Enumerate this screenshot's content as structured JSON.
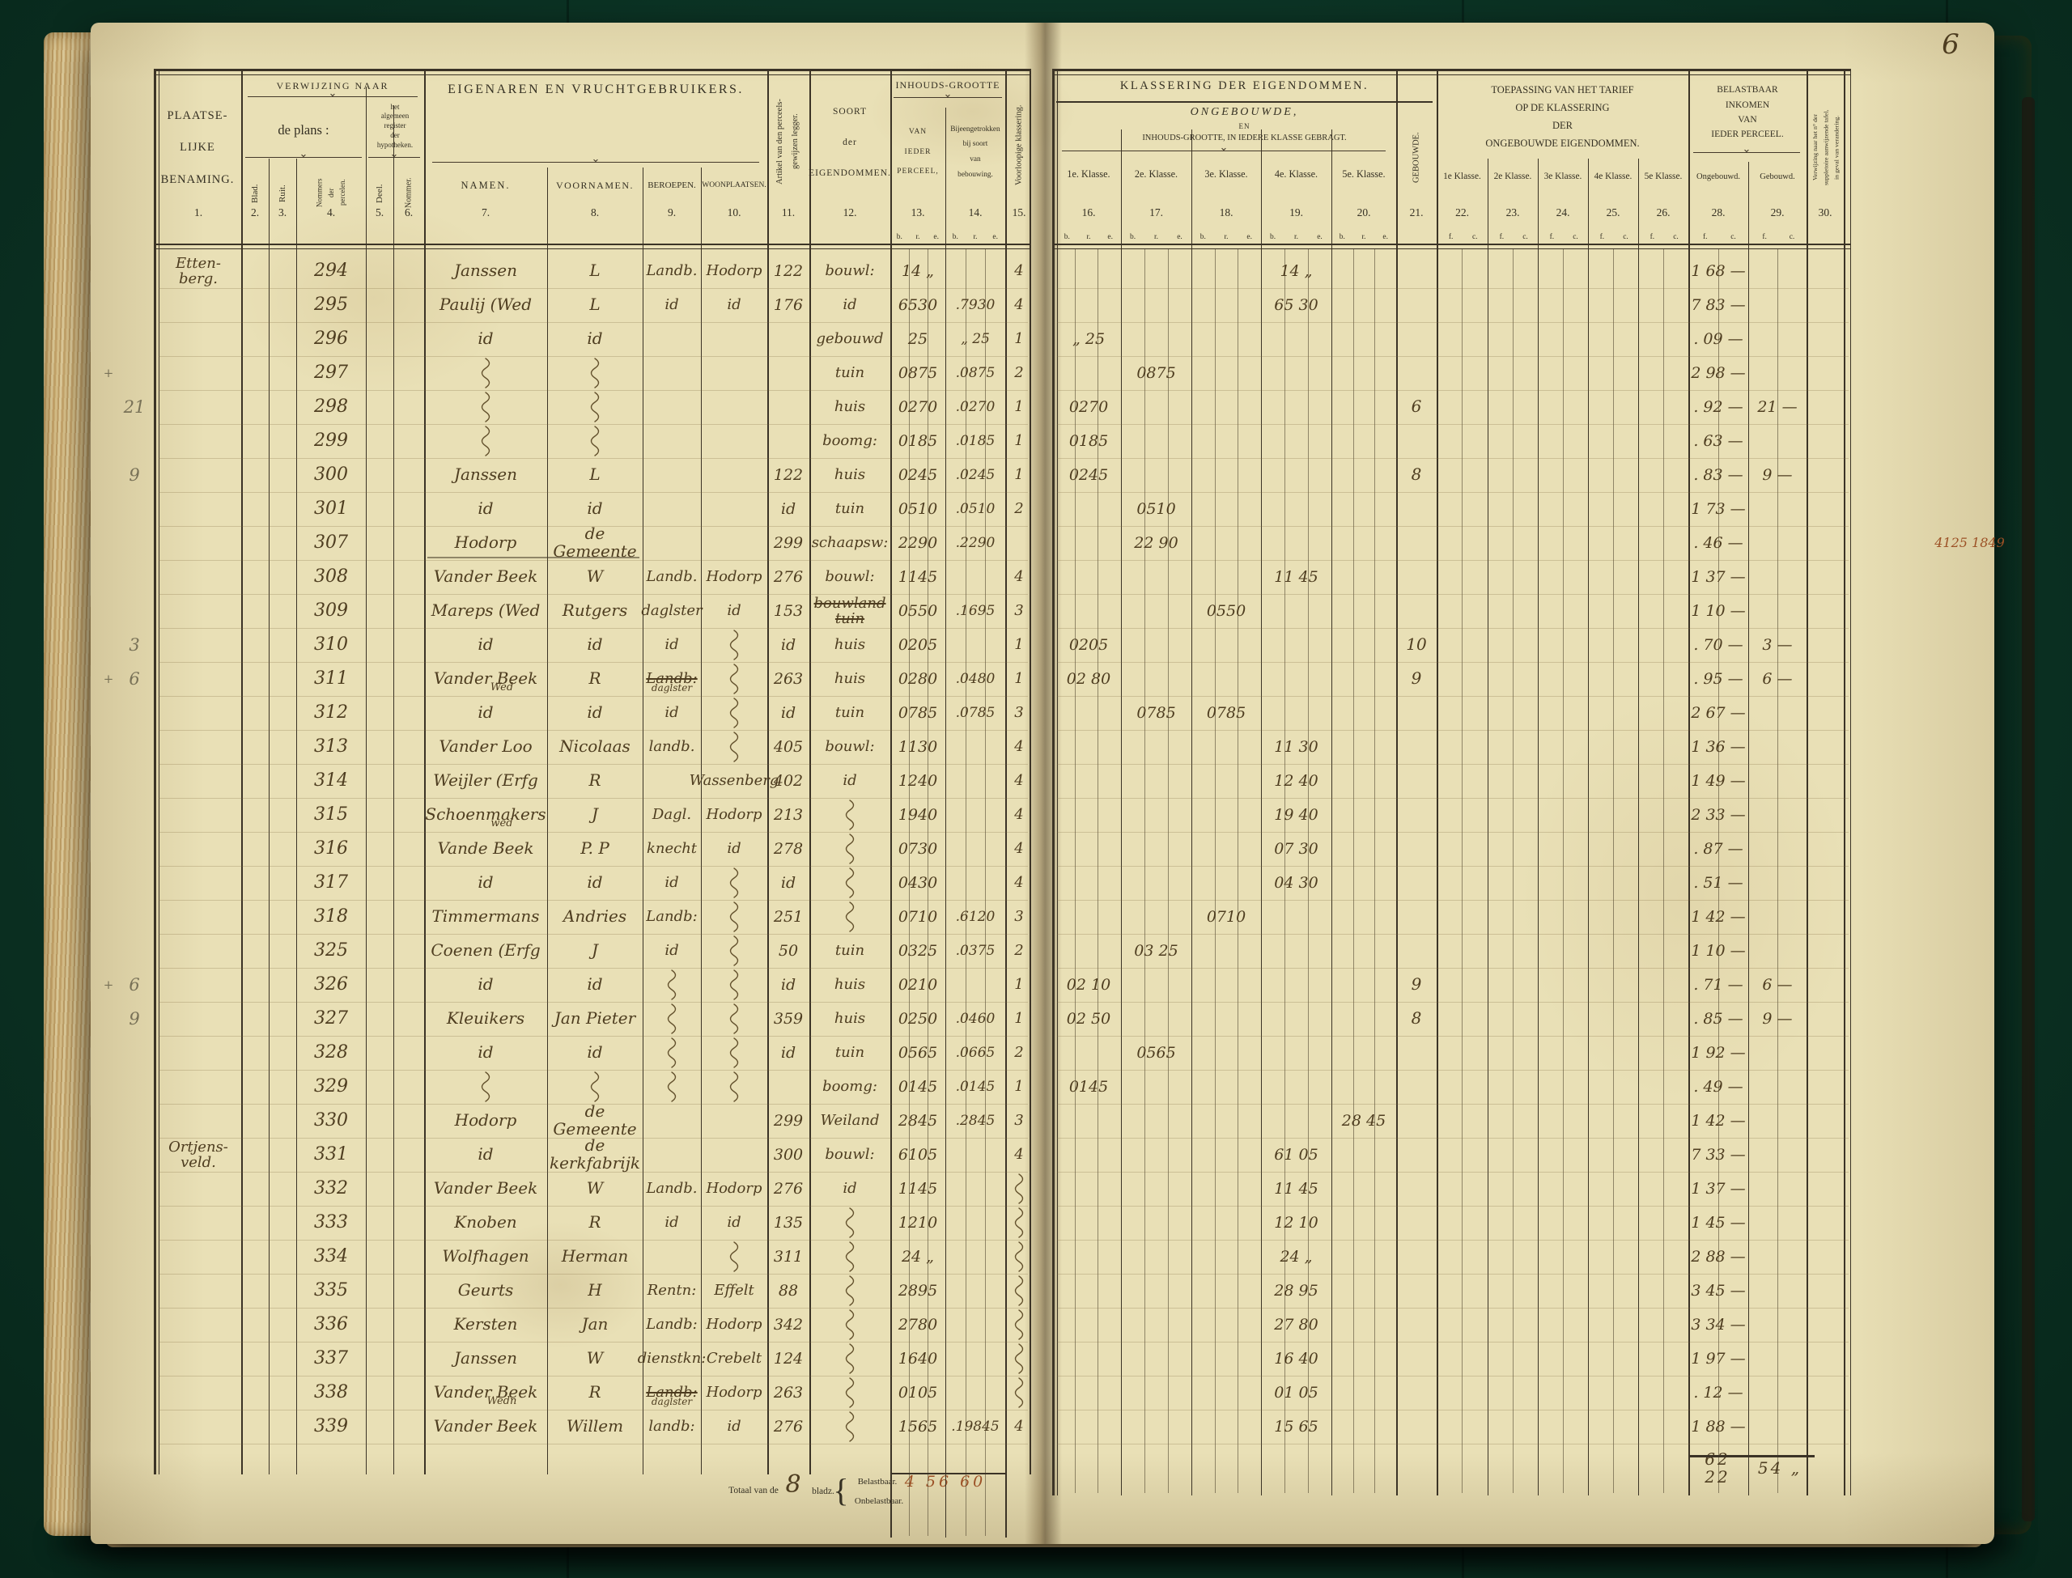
{
  "folio_number": "6",
  "colors": {
    "felt_green": "#0c3425",
    "paper_cream": "#e9e0b6",
    "print_ink": "#353023",
    "handwriting_ink": "#4e3d20",
    "red_ink": "#9c5126",
    "pencil": "#787157"
  },
  "ledger": {
    "left_header": {
      "plaatselijke_benaming": "PLAATSE-\nLIJKE\nBENAMING.",
      "verwijzing_naar": "VERWIJZING NAAR",
      "de_plans": "de plans :",
      "register_hypotheken": "het\nalgemeen\nregister\nder\nhypotheken.",
      "blad": "Blad.",
      "ruit": "Ruit.",
      "nommers_percelen": "Nommers\nder\npercelen.",
      "deel": "Deel.",
      "nommer": "Nommer.",
      "eigenaren": "EIGENAREN  EN  VRUCHTGEBRUIKERS.",
      "namen": "NAMEN.",
      "voornamen": "VOORNAMEN.",
      "beroepen": "BEROEPEN.",
      "woonplaatsen": "WOONPLAATSEN.",
      "artikel_legger": "Artikel van den perceels-\ngewijzen legger.",
      "soort": "SOORT\nder\nEIGENDOMMEN.",
      "inhouds_grootte": "INHOUDS-GROOTTE",
      "van_ieder_perceel": "VAN\nIEDER\nPERCEEL,",
      "bijeengetrokken": "Bijeengetrokken\nbij soort\nvan\nbebouwing.",
      "voorloopige_klassering": "Voorloopige klassering."
    },
    "right_header": {
      "klassering": "KLASSERING  DER  EIGENDOMMEN.",
      "ongebouwde": "ONGEBOUWDE,",
      "en": "EN",
      "in_iedere_klasse": "INHOUDS-GROOTTE,  IN  IEDERE  KLASSE  GEBRAGT.",
      "klassen_ongebouwd": [
        "1e. Klasse.",
        "2e. Klasse.",
        "3e. Klasse.",
        "4e. Klasse.",
        "5e. Klasse."
      ],
      "gebouwde": "GEBOUWDE.",
      "toepassing": "TOEPASSING VAN HET TARIEF\nOP DE KLASSERING\nDER\nONGEBOUWDE EIGENDOMMEN.",
      "klassen_tarief": [
        "1e Klasse.",
        "2e Klasse.",
        "3e Klasse.",
        "4e Klasse.",
        "5e Klasse."
      ],
      "belastbaar_inkomen": "BELASTBAAR\nINKOMEN\nVAN\nIEDER PERCEEL.",
      "ongebouwd": "Ongebouwd.",
      "gebouwd": "Gebouwd.",
      "verwijzing_suppletoire": "Verwijzing naar het n° der\nsuppletoire aanwijzende tafel,\nin geval van verandering."
    },
    "column_numbers": {
      "place": "1.",
      "blad": "2.",
      "ruit": "3.",
      "perc": "4.",
      "deel": "5.",
      "nom": "6.",
      "nm": "7.",
      "vn": "8.",
      "br": "9.",
      "wp": "10.",
      "art": "11.",
      "srt": "12.",
      "inh": "13.",
      "bij": "14.",
      "vk": "15.",
      "k1": "16.",
      "k2": "17.",
      "k3": "18.",
      "k4": "19.",
      "k5": "20.",
      "gb": "21.",
      "t1": "22.",
      "t2": "23.",
      "t3": "24.",
      "t4": "25.",
      "t5": "26.",
      "oi": "28.",
      "gi": "29.",
      "vw": "30."
    },
    "units": {
      "area": [
        "b.",
        "r.",
        "e."
      ],
      "money": [
        "f.",
        "c."
      ]
    },
    "rows": [
      {
        "no": "294",
        "place": "Etten-\nberg.",
        "nm": "Janssen",
        "vn": "L",
        "br": "Landb.",
        "wp": "Hodorp",
        "art": "122",
        "srt": "bouwl:",
        "inh": "14 „",
        "vk": "4",
        "k4": "14 „",
        "oi": "1 68 —"
      },
      {
        "no": "295",
        "nm": "Paulij (Wed",
        "vn": "L",
        "br": "id",
        "wp": "id",
        "art": "176",
        "srt": "id",
        "inh": "6530",
        "bij": ".7930",
        "vk": "4",
        "k4": "65 30",
        "oi": "7 83 —"
      },
      {
        "no": "296",
        "nm": "id",
        "vn": "id",
        "srt": "gebouwd",
        "inh": "25",
        "bij": "„ 25",
        "vk": "1",
        "k1": "„ 25",
        "oi": ". 09 —"
      },
      {
        "no": "297",
        "sq": [
          "nm",
          "vn"
        ],
        "srt": "tuin",
        "inh": "0875",
        "bij": ".0875",
        "vk": "2",
        "k2": "0875",
        "oi": "2 98 —",
        "mx": "+"
      },
      {
        "no": "298",
        "sq": [
          "nm",
          "vn"
        ],
        "srt": "huis",
        "inh": "0270",
        "bij": ".0270",
        "vk": "1",
        "k1": "0270",
        "gb": "6",
        "oi": ". 92 —",
        "gi": "21 —",
        "ml": "21"
      },
      {
        "no": "299",
        "sq": [
          "nm",
          "vn"
        ],
        "srt": "boomg:",
        "inh": "0185",
        "bij": ".0185",
        "vk": "1",
        "k1": "0185",
        "oi": ". 63 —"
      },
      {
        "no": "300",
        "nm": "Janssen",
        "vn": "L",
        "art": "122",
        "srt": "huis",
        "inh": "0245",
        "bij": ".0245",
        "vk": "1",
        "k1": "0245",
        "gb": "8",
        "oi": ". 83 —",
        "gi": "9 —",
        "ml": "9"
      },
      {
        "no": "301",
        "nm": "id",
        "vn": "id",
        "art": "id",
        "srt": "tuin",
        "inh": "0510",
        "bij": ".0510",
        "vk": "2",
        "k2": "0510",
        "oi": "1 73 —"
      },
      {
        "no": "307",
        "nm": "Hodorp",
        "vn": "de Gemeente",
        "art": "299",
        "srt": "schaapsw:",
        "inh": "2290",
        "bij": ".2290",
        "k2": "22 90",
        "oi": ". 46 —",
        "mr": "4125  1849",
        "ul": true
      },
      {
        "no": "308",
        "nm": "Vander Beek",
        "vn": "W",
        "br": "Landb.",
        "wp": "Hodorp",
        "art": "276",
        "srt": "bouwl:",
        "inh": "1145",
        "vk": "4",
        "k4": "11 45",
        "oi": "1 37 —"
      },
      {
        "no": "309",
        "nm": "Mareps (Wed",
        "vn": "Rutgers",
        "br": "daglster",
        "wp": "id",
        "art": "153",
        "srt": "bouwland\ntuin",
        "st": true,
        "inh": "0550",
        "bij": ".1695",
        "vk": "3",
        "k3": "0550",
        "oi": "1 10 —"
      },
      {
        "no": "310",
        "nm": "id",
        "vn": "id",
        "br": "id",
        "sq": [
          "wp"
        ],
        "art": "id",
        "srt": "huis",
        "inh": "0205",
        "vk": "1",
        "k1": "0205",
        "gb": "10",
        "oi": ". 70 —",
        "gi": "3 —",
        "ml": "3"
      },
      {
        "no": "311",
        "nm": "Vander Beek",
        "nm2": "Wed",
        "vn": "R",
        "br": "Landb:",
        "br2": "daglster",
        "bs": true,
        "sq": [
          "wp"
        ],
        "art": "263",
        "srt": "huis",
        "inh": "0280",
        "bij": ".0480",
        "vk": "1",
        "k1": "02 80",
        "gb": "9",
        "oi": ". 95 —",
        "gi": "6 —",
        "ml": "6",
        "mx": "+"
      },
      {
        "no": "312",
        "nm": "id",
        "vn": "id",
        "br": "id",
        "sq": [
          "wp"
        ],
        "art": "id",
        "srt": "tuin",
        "inh": "0785",
        "bij": ".0785",
        "vk": "3",
        "k2": "0785",
        "k3": "0785",
        "oi": "2 67 —"
      },
      {
        "no": "313",
        "nm": "Vander Loo",
        "vn": "Nicolaas",
        "br": "landb.",
        "sq": [
          "wp"
        ],
        "art": "405",
        "srt": "bouwl:",
        "inh": "1130",
        "vk": "4",
        "k4": "11 30",
        "oi": "1 36 —"
      },
      {
        "no": "314",
        "nm": "Weijler (Erfg",
        "vn": "R",
        "wp": "Wassenberg",
        "art": "402",
        "srt": "id",
        "inh": "1240",
        "vk": "4",
        "k4": "12 40",
        "oi": "1 49 —"
      },
      {
        "no": "315",
        "nm": "Schoenmakers",
        "nm2": "wed",
        "vn": "J",
        "br": "Dagl.",
        "wp": "Hodorp",
        "art": "213",
        "sq": [
          "srt"
        ],
        "inh": "1940",
        "vk": "4",
        "k4": "19 40",
        "oi": "2 33 —"
      },
      {
        "no": "316",
        "nm": "Vande Beek",
        "vn": "P. P",
        "br": "knecht",
        "wp": "id",
        "art": "278",
        "sq": [
          "srt"
        ],
        "inh": "0730",
        "vk": "4",
        "k4": "07 30",
        "oi": ". 87 —"
      },
      {
        "no": "317",
        "nm": "id",
        "vn": "id",
        "br": "id",
        "sq": [
          "srt",
          "wp"
        ],
        "art": "id",
        "inh": "0430",
        "vk": "4",
        "k4": "04 30",
        "oi": ". 51 —"
      },
      {
        "no": "318",
        "nm": "Timmermans",
        "vn": "Andries",
        "br": "Landb:",
        "sq": [
          "srt",
          "wp"
        ],
        "art": "251",
        "inh": "0710",
        "bij": ".6120",
        "vk": "3",
        "k3": "0710",
        "oi": "1 42 —"
      },
      {
        "no": "325",
        "nm": "Coenen (Erfg",
        "vn": "J",
        "br": "id",
        "sq": [
          "wp"
        ],
        "art": "50",
        "srt": "tuin",
        "inh": "0325",
        "bij": ".0375",
        "vk": "2",
        "k2": "03 25",
        "oi": "1 10 —"
      },
      {
        "no": "326",
        "nm": "id",
        "vn": "id",
        "sq": [
          "br",
          "wp"
        ],
        "art": "id",
        "srt": "huis",
        "inh": "0210",
        "vk": "1",
        "k1": "02 10",
        "gb": "9",
        "oi": ". 71 —",
        "gi": "6 —",
        "ml": "6",
        "mx": "+"
      },
      {
        "no": "327",
        "nm": "Kleuikers",
        "vn": "Jan Pieter",
        "sq": [
          "br",
          "wp"
        ],
        "art": "359",
        "srt": "huis",
        "inh": "0250",
        "bij": ".0460",
        "vk": "1",
        "k1": "02 50",
        "gb": "8",
        "oi": ". 85 —",
        "gi": "9 —",
        "ml": "9"
      },
      {
        "no": "328",
        "nm": "id",
        "vn": "id",
        "sq": [
          "br",
          "wp"
        ],
        "art": "id",
        "srt": "tuin",
        "inh": "0565",
        "bij": ".0665",
        "vk": "2",
        "k2": "0565",
        "oi": "1 92 —"
      },
      {
        "no": "329",
        "sq": [
          "nm",
          "vn",
          "br",
          "wp"
        ],
        "srt": "boomg:",
        "inh": "0145",
        "bij": ".0145",
        "vk": "1",
        "k1": "0145",
        "oi": ". 49 —"
      },
      {
        "no": "330",
        "nm": "Hodorp",
        "vn": "de Gemeente",
        "art": "299",
        "srt": "Weiland",
        "inh": "2845",
        "bij": ".2845",
        "vk": "3",
        "k5": "28 45",
        "oi": "1 42 —"
      },
      {
        "no": "331",
        "place": "Ortjens-\nveld.",
        "nm": "id",
        "vn": "de kerkfabrijk",
        "art": "300",
        "srt": "bouwl:",
        "inh": "6105",
        "vk": "4",
        "k4": "61 05",
        "oi": "7 33 —"
      },
      {
        "no": "332",
        "nm": "Vander Beek",
        "vn": "W",
        "br": "Landb.",
        "wp": "Hodorp",
        "art": "276",
        "srt": "id",
        "inh": "1145",
        "sq": [
          "vk"
        ],
        "k4": "11 45",
        "oi": "1 37 —"
      },
      {
        "no": "333",
        "nm": "Knoben",
        "vn": "R",
        "br": "id",
        "wp": "id",
        "art": "135",
        "sq": [
          "srt",
          "vk"
        ],
        "inh": "1210",
        "k4": "12 10",
        "oi": "1 45 —"
      },
      {
        "no": "334",
        "nm": "Wolfhagen",
        "vn": "Herman",
        "sq": [
          "srt",
          "wp",
          "vk"
        ],
        "art": "311",
        "inh": "24 „",
        "k4": "24 „",
        "oi": "2 88 —"
      },
      {
        "no": "335",
        "nm": "Geurts",
        "vn": "H",
        "br": "Rentn:",
        "wp": "Effelt",
        "art": "88",
        "sq": [
          "srt",
          "vk"
        ],
        "inh": "2895",
        "k4": "28 95",
        "oi": "3 45 —"
      },
      {
        "no": "336",
        "nm": "Kersten",
        "vn": "Jan",
        "br": "Landb:",
        "wp": "Hodorp",
        "art": "342",
        "sq": [
          "srt",
          "vk"
        ],
        "inh": "2780",
        "k4": "27 80",
        "oi": "3 34 —"
      },
      {
        "no": "337",
        "nm": "Janssen",
        "vn": "W",
        "br": "dienstkn:",
        "wp": "Crebelt",
        "art": "124",
        "sq": [
          "srt",
          "vk"
        ],
        "inh": "1640",
        "k4": "16 40",
        "oi": "1 97 —"
      },
      {
        "no": "338",
        "nm": "Vander Beek",
        "nm2": "Wedn",
        "vn": "R",
        "br": "Landb:",
        "br2": "daglster",
        "bs": true,
        "wp": "Hodorp",
        "art": "263",
        "sq": [
          "srt",
          "vk"
        ],
        "inh": "0105",
        "k4": "01 05",
        "oi": ". 12 —"
      },
      {
        "no": "339",
        "nm": "Vander Beek",
        "vn": "Willem",
        "br": "landb:",
        "wp": "id",
        "art": "276",
        "sq": [
          "srt"
        ],
        "inh": "1565",
        "bij": ".19845",
        "vk": "4",
        "k4": "15 65",
        "oi": "1 88 —"
      }
    ],
    "totals": {
      "label": "Totaal van de",
      "blads_count": "8",
      "bladz": "bladz.",
      "brace": "{",
      "belastbaar": "Belastbaar.",
      "onbelastbaar": "Onbelastbaar.",
      "values": "4 56 60",
      "ongebouwd_total": "62 22",
      "gebouwd_total": "54 „"
    }
  }
}
